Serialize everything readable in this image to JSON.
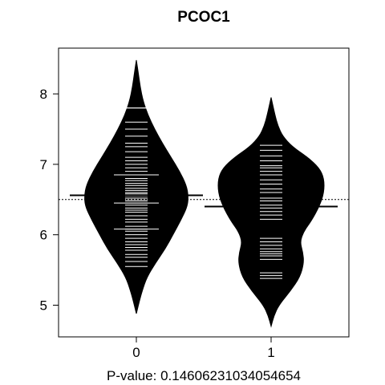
{
  "chart_data": {
    "type": "beanplot",
    "title": "PCOC1",
    "xlabel_prefix": "P-value:",
    "p_value": "0.14606231034054654",
    "ylabel": "",
    "ylim": [
      4.55,
      8.65
    ],
    "yticks": [
      5,
      6,
      7,
      8
    ],
    "categories": [
      "0",
      "1"
    ],
    "overall_mean": 6.5,
    "colors": {
      "bean": "#000000",
      "beanline": "#ffffff",
      "background": "#ffffff"
    },
    "groups": [
      {
        "label": "0",
        "mean": 6.56,
        "min": 4.88,
        "max": 8.48,
        "density_profile": [
          [
            4.88,
            0.0
          ],
          [
            5.05,
            0.03
          ],
          [
            5.2,
            0.06
          ],
          [
            5.4,
            0.11
          ],
          [
            5.6,
            0.2
          ],
          [
            5.8,
            0.3
          ],
          [
            6.0,
            0.38
          ],
          [
            6.2,
            0.46
          ],
          [
            6.4,
            0.53
          ],
          [
            6.55,
            0.54
          ],
          [
            6.7,
            0.52
          ],
          [
            6.9,
            0.45
          ],
          [
            7.1,
            0.36
          ],
          [
            7.3,
            0.27
          ],
          [
            7.5,
            0.19
          ],
          [
            7.7,
            0.12
          ],
          [
            7.9,
            0.07
          ],
          [
            8.1,
            0.04
          ],
          [
            8.3,
            0.02
          ],
          [
            8.48,
            0.0
          ]
        ],
        "observations": [
          5.55,
          5.62,
          5.68,
          5.72,
          5.78,
          5.82,
          5.86,
          5.9,
          5.95,
          6.0,
          6.05,
          6.08,
          6.12,
          6.18,
          6.22,
          6.27,
          6.32,
          6.35,
          6.38,
          6.42,
          6.45,
          6.48,
          6.5,
          6.52,
          6.55,
          6.58,
          6.6,
          6.63,
          6.66,
          6.7,
          6.73,
          6.77,
          6.8,
          6.85,
          6.9,
          6.95,
          7.0,
          7.05,
          7.1,
          7.18,
          7.25,
          7.3,
          7.4,
          7.5,
          7.6,
          7.8
        ],
        "wide_observations": [
          6.08,
          6.45,
          6.85,
          7.8
        ]
      },
      {
        "label": "1",
        "mean": 6.4,
        "min": 4.7,
        "max": 7.95,
        "density_profile": [
          [
            4.7,
            0.0
          ],
          [
            4.85,
            0.03
          ],
          [
            5.0,
            0.08
          ],
          [
            5.2,
            0.2
          ],
          [
            5.4,
            0.3
          ],
          [
            5.6,
            0.34
          ],
          [
            5.75,
            0.33
          ],
          [
            5.9,
            0.3
          ],
          [
            6.05,
            0.34
          ],
          [
            6.2,
            0.42
          ],
          [
            6.4,
            0.5
          ],
          [
            6.6,
            0.55
          ],
          [
            6.8,
            0.55
          ],
          [
            6.95,
            0.5
          ],
          [
            7.1,
            0.38
          ],
          [
            7.25,
            0.22
          ],
          [
            7.4,
            0.12
          ],
          [
            7.55,
            0.07
          ],
          [
            7.7,
            0.04
          ],
          [
            7.95,
            0.0
          ]
        ],
        "observations": [
          5.38,
          5.42,
          5.46,
          5.65,
          5.7,
          5.73,
          5.76,
          5.8,
          5.85,
          5.9,
          5.95,
          6.22,
          6.28,
          6.33,
          6.38,
          6.42,
          6.48,
          6.52,
          6.6,
          6.65,
          6.72,
          6.78,
          6.85,
          6.9,
          6.95,
          6.98,
          7.05,
          7.12,
          7.2,
          7.27
        ],
        "wide_observations": []
      }
    ]
  }
}
